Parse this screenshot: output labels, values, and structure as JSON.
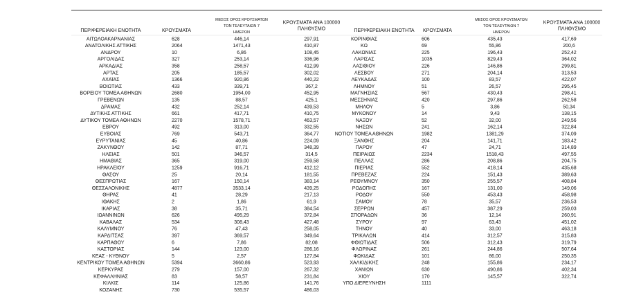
{
  "left_table": {
    "headers": [
      "ΠΕΡΙΦΕΡΕΙΑΚΗ ΕΝΟΤΗΤΑ",
      "ΚΡΟΥΣΜΑΤΑ",
      "ΜΕΣΟΣ ΟΡΟΣ ΚΡΟΥΣΜΑΤΩΝ ΤΟΝ ΤΕΛΕΥΤΑΙΩΝ 7 ΗΜΕΡΩΝ",
      "ΚΡΟΥΣΜΑΤΑ ΑΝΑ 100000 ΠΛΗΘΥΣΜΟ"
    ],
    "rows": [
      [
        "ΑΙΤΩΛΟΑΚΑΡΝΑΝΙΑΣ",
        "628",
        "446,14",
        "297,91"
      ],
      [
        "ΑΝΑΤΟΛΙΚΗΣ ΑΤΤΙΚΗΣ",
        "2064",
        "1471,43",
        "410,87"
      ],
      [
        "ΑΝΔΡΟΥ",
        "10",
        "6,86",
        "108,45"
      ],
      [
        "ΑΡΓΟΛΙΔΑΣ",
        "327",
        "253,14",
        "336,96"
      ],
      [
        "ΑΡΚΑΔΙΑΣ",
        "358",
        "258,57",
        "412,99"
      ],
      [
        "ΑΡΤΑΣ",
        "205",
        "185,57",
        "302,02"
      ],
      [
        "ΑΧΑΪΑΣ",
        "1366",
        "920,86",
        "440,22"
      ],
      [
        "ΒΟΙΩΤΙΑΣ",
        "433",
        "339,71",
        "367,2"
      ],
      [
        "ΒΟΡΕΙΟΥ ΤΟΜΕΑ ΑΘΗΝΩΝ",
        "2680",
        "1954,00",
        "452,95"
      ],
      [
        "ΓΡΕΒΕΝΩΝ",
        "135",
        "88,57",
        "425,1"
      ],
      [
        "ΔΡΑΜΑΣ",
        "432",
        "252,14",
        "439,53"
      ],
      [
        "ΔΥΤΙΚΗΣ ΑΤΤΙΚΗΣ",
        "661",
        "417,71",
        "410,75"
      ],
      [
        "ΔΥΤΙΚΟΥ ΤΟΜΕΑ ΑΘΗΝΩΝ",
        "2270",
        "1578,71",
        "463,57"
      ],
      [
        "ΕΒΡΟΥ",
        "492",
        "313,00",
        "332,55"
      ],
      [
        "ΕΥΒΟΙΑΣ",
        "769",
        "543,71",
        "364,77"
      ],
      [
        "ΕΥΡΥΤΑΝΙΑΣ",
        "45",
        "40,86",
        "224,09"
      ],
      [
        "ΖΑΚΥΝΘΟΥ",
        "142",
        "87,71",
        "348,39"
      ],
      [
        "ΗΛΕΙΑΣ",
        "501",
        "346,57",
        "314,5"
      ],
      [
        "ΗΜΑΘΙΑΣ",
        "365",
        "319,00",
        "259,58"
      ],
      [
        "ΗΡΑΚΛΕΙΟΥ",
        "1259",
        "916,71",
        "412,12"
      ],
      [
        "ΘΑΣΟΥ",
        "25",
        "20,14",
        "181,55"
      ],
      [
        "ΘΕΣΠΡΩΤΙΑΣ",
        "167",
        "150,14",
        "383,14"
      ],
      [
        "ΘΕΣΣΑΛΟΝΙΚΗΣ",
        "4877",
        "3533,14",
        "439,25"
      ],
      [
        "ΘΗΡΑΣ",
        "41",
        "28,29",
        "217,13"
      ],
      [
        "ΙΘΑΚΗΣ",
        "2",
        "1,86",
        "61,9"
      ],
      [
        "ΙΚΑΡΙΑΣ",
        "38",
        "35,71",
        "384,54"
      ],
      [
        "ΙΩΑΝΝΙΝΩΝ",
        "626",
        "495,29",
        "372,84"
      ],
      [
        "ΚΑΒΑΛΑΣ",
        "534",
        "308,43",
        "427,48"
      ],
      [
        "ΚΑΛΥΜΝΟΥ",
        "76",
        "47,43",
        "258,05"
      ],
      [
        "ΚΑΡΔΙΤΣΑΣ",
        "397",
        "369,57",
        "349,64"
      ],
      [
        "ΚΑΡΠΑΘΟΥ",
        "6",
        "7,86",
        "82,08"
      ],
      [
        "ΚΑΣΤΟΡΙΑΣ",
        "144",
        "123,00",
        "286,16"
      ],
      [
        "ΚΕΑΣ - ΚΥΘΝΟΥ",
        "5",
        "2,57",
        "127,84"
      ],
      [
        "ΚΕΝΤΡΙΚΟΥ ΤΟΜΕΑ ΑΘΗΝΩΝ",
        "5394",
        "3660,86",
        "523,93"
      ],
      [
        "ΚΕΡΚΥΡΑΣ",
        "279",
        "157,00",
        "267,32"
      ],
      [
        "ΚΕΦΑΛΛΗΝΙΑΣ",
        "83",
        "58,57",
        "231,84"
      ],
      [
        "ΚΙΛΚΙΣ",
        "114",
        "125,86",
        "141,76"
      ],
      [
        "ΚΟΖΑΝΗΣ",
        "730",
        "535,57",
        "486,03"
      ]
    ]
  },
  "right_table": {
    "headers": [
      "ΠΕΡΙΦΕΡΕΙΑΚΗ ΕΝΟΤΗΤΑ",
      "ΚΡΟΥΣΜΑΤΑ",
      "ΜΕΣΟΣ ΟΡΟΣ ΚΡΟΥΣΜΑΤΩΝ ΤΟΝ ΤΕΛΕΥΤΑΙΩΝ 7 ΗΜΕΡΩΝ",
      "ΚΡΟΥΣΜΑΤΑ ΑΝΑ 100000 ΠΛΗΘΥΣΜΟ"
    ],
    "rows": [
      [
        "ΚΟΡΙΝΘΙΑΣ",
        "606",
        "435,43",
        "417,69"
      ],
      [
        "ΚΩ",
        "69",
        "55,86",
        "200,6"
      ],
      [
        "ΛΑΚΩΝΙΑΣ",
        "225",
        "196,43",
        "252,42"
      ],
      [
        "ΛΑΡΙΣΑΣ",
        "1035",
        "829,43",
        "364,02"
      ],
      [
        "ΛΑΣΙΘΙΟΥ",
        "226",
        "146,86",
        "299,81"
      ],
      [
        "ΛΕΣΒΟΥ",
        "271",
        "204,14",
        "313,53"
      ],
      [
        "ΛΕΥΚΑΔΑΣ",
        "100",
        "83,57",
        "422,07"
      ],
      [
        "ΛΗΜΝΟΥ",
        "51",
        "26,57",
        "295,45"
      ],
      [
        "ΜΑΓΝΗΣΙΑΣ",
        "567",
        "430,43",
        "298,41"
      ],
      [
        "ΜΕΣΣΗΝΙΑΣ",
        "420",
        "297,86",
        "262,58"
      ],
      [
        "ΜΗΛΟΥ",
        "5",
        "3,86",
        "50,34"
      ],
      [
        "ΜΥΚΟΝΟΥ",
        "14",
        "9,43",
        "138,15"
      ],
      [
        "ΝΑΞΟΥ",
        "52",
        "32,00",
        "249,56"
      ],
      [
        "ΝΗΣΩΝ",
        "241",
        "162,14",
        "322,84"
      ],
      [
        "ΝΟΤΙΟΥ ΤΟΜΕΑ ΑΘΗΝΩΝ",
        "1982",
        "1381,29",
        "374,09"
      ],
      [
        "ΞΑΝΘΗΣ",
        "204",
        "141,71",
        "183,42"
      ],
      [
        "ΠΑΡΟΥ",
        "47",
        "24,71",
        "314,89"
      ],
      [
        "ΠΕΙΡΑΙΩΣ",
        "2234",
        "1518,43",
        "497,55"
      ],
      [
        "ΠΕΛΛΑΣ",
        "286",
        "208,86",
        "204,75"
      ],
      [
        "ΠΙΕΡΙΑΣ",
        "552",
        "418,14",
        "435,68"
      ],
      [
        "ΠΡΕΒΕΖΑΣ",
        "224",
        "151,43",
        "389,63"
      ],
      [
        "ΡΕΘΥΜΝΟΥ",
        "350",
        "255,57",
        "408,84"
      ],
      [
        "ΡΟΔΟΠΗΣ",
        "167",
        "131,00",
        "149,06"
      ],
      [
        "ΡΟΔΟΥ",
        "550",
        "453,43",
        "458,98"
      ],
      [
        "ΣΑΜΟΥ",
        "78",
        "35,57",
        "236,53"
      ],
      [
        "ΣΕΡΡΩΝ",
        "457",
        "387,29",
        "259,03"
      ],
      [
        "ΣΠΟΡΑΔΩΝ",
        "36",
        "12,14",
        "260,91"
      ],
      [
        "ΣΥΡΟΥ",
        "97",
        "63,43",
        "451,02"
      ],
      [
        "ΤΗΝΟΥ",
        "40",
        "33,00",
        "463,18"
      ],
      [
        "ΤΡΙΚΑΛΩΝ",
        "414",
        "312,57",
        "315,83"
      ],
      [
        "ΦΘΙΩΤΙΔΑΣ",
        "506",
        "312,43",
        "319,79"
      ],
      [
        "ΦΛΩΡΙΝΑΣ",
        "261",
        "244,86",
        "507,64"
      ],
      [
        "ΦΩΚΙΔΑΣ",
        "101",
        "86,00",
        "250,35"
      ],
      [
        "ΧΑΛΚΙΔΙΚΗΣ",
        "248",
        "155,86",
        "234,17"
      ],
      [
        "ΧΑΝΙΩΝ",
        "630",
        "490,86",
        "402,34"
      ],
      [
        "ΧΙΟΥ",
        "170",
        "145,57",
        "322,74"
      ],
      [
        "ΥΠΟ ΔΙΕΡΕΥΝΗΣΗ",
        "1111"
      ]
    ]
  }
}
